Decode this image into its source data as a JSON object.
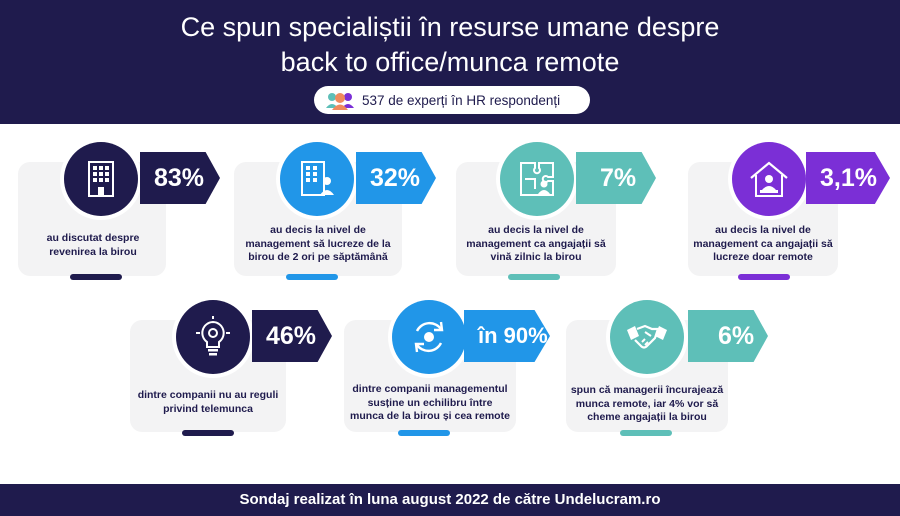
{
  "header": {
    "title_line1": "Ce spun specialiștii în resurse umane despre",
    "title_line2": "back to office/munca remote",
    "respondents": "537 de experți în HR respondenți"
  },
  "colors": {
    "navy": "#1f1b4d",
    "blue": "#2196e8",
    "teal": "#5ebfb8",
    "purple": "#7b2fd6"
  },
  "stats": [
    {
      "icon": "office-building-icon",
      "value": "83%",
      "lines": [
        "au discutat despre",
        "revenirea la birou"
      ]
    },
    {
      "icon": "office-building-person-icon",
      "value": "32%",
      "lines": [
        "au decis la nivel de",
        "management să lucreze de la",
        "birou de 2 ori pe săptămână"
      ]
    },
    {
      "icon": "puzzle-person-icon",
      "value": "7%",
      "lines": [
        "au decis la nivel de",
        "management ca angajații să",
        "vină zilnic la birou"
      ]
    },
    {
      "icon": "home-worker-icon",
      "value": "3,1%",
      "lines": [
        "au decis la nivel de",
        "management ca angajații să",
        "lucreze doar remote"
      ]
    },
    {
      "icon": "lightbulb-gears-icon",
      "value": "46%",
      "lines": [
        "dintre companii nu au reguli",
        "privind telemunca"
      ]
    },
    {
      "icon": "balance-cycle-icon",
      "value": "în 90%",
      "lines": [
        "dintre companii managementul",
        "susține un echilibru între",
        "munca de la birou și cea remote"
      ]
    },
    {
      "icon": "handshake-icon",
      "value": "6%",
      "lines": [
        "spun că managerii încurajează",
        "munca remote, iar 4% vor să",
        "cheme angajații la birou"
      ]
    }
  ],
  "footer": {
    "text": "Sondaj realizat în luna august 2022 de către Undelucram.ro"
  }
}
